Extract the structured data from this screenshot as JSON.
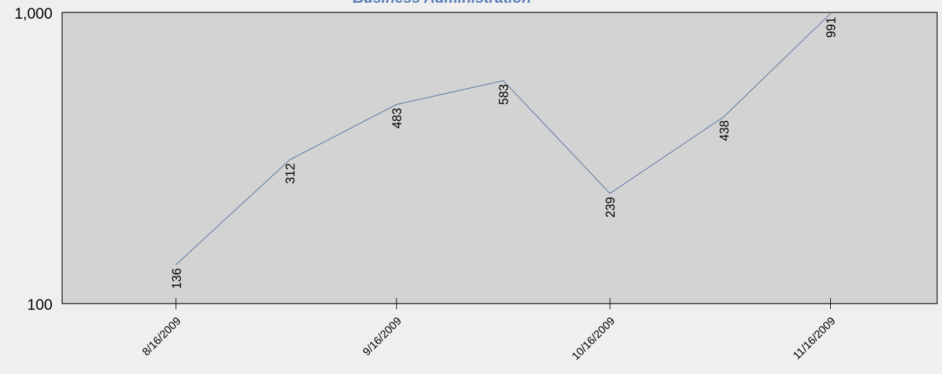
{
  "chart_data": {
    "type": "line",
    "title": "Business Administration",
    "xlabel": "",
    "ylabel": "",
    "y_scale": "log",
    "ylim": [
      100,
      1000
    ],
    "xlim": [
      "2009-07-31",
      "2009-12-01"
    ],
    "y_tick_labels": [
      "1,000",
      "100"
    ],
    "x_tick_labels": [
      "8/16/2009",
      "9/16/2009",
      "10/16/2009",
      "11/16/2009"
    ],
    "x_tick_dates": [
      "2009-08-16",
      "2009-09-16",
      "2009-10-16",
      "2009-11-16"
    ],
    "series": [
      {
        "color": "#4f6f9f",
        "points": [
          {
            "x": "2009-08-16",
            "y": 136,
            "label": "136"
          },
          {
            "x": "2009-09-01",
            "y": 312,
            "label": "312"
          },
          {
            "x": "2009-09-16",
            "y": 483,
            "label": "483"
          },
          {
            "x": "2009-10-01",
            "y": 583,
            "label": "583"
          },
          {
            "x": "2009-10-16",
            "y": 239,
            "label": "239"
          },
          {
            "x": "2009-11-01",
            "y": 438,
            "label": "438"
          },
          {
            "x": "2009-11-16",
            "y": 991,
            "label": "991"
          }
        ]
      }
    ],
    "grid": false,
    "legend": "none",
    "plot_background": "#d3d3d3",
    "page_background": "#efefef",
    "title_color": "#5b7db8"
  }
}
